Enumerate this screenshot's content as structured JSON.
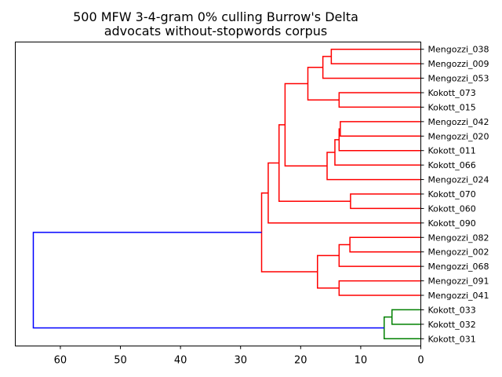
{
  "chart_data": {
    "type": "dendrogram",
    "orientation": "left",
    "title": [
      "500 MFW 3-4-gram 0% culling Burrow's Delta",
      "advocats without-stopwords corpus"
    ],
    "xlabel": "",
    "ylabel": "",
    "xlim": [
      67.5,
      0
    ],
    "xticks": [
      60,
      50,
      40,
      30,
      20,
      10,
      0
    ],
    "leaves": [
      "Mengozzi_038",
      "Mengozzi_009",
      "Mengozzi_053",
      "Kokott_073",
      "Kokott_015",
      "Mengozzi_042",
      "Mengozzi_020",
      "Kokott_011",
      "Kokott_066",
      "Mengozzi_024",
      "Kokott_070",
      "Kokott_060",
      "Kokott_090",
      "Mengozzi_082",
      "Mengozzi_002",
      "Mengozzi_068",
      "Mengozzi_091",
      "Mengozzi_041",
      "Kokott_033",
      "Kokott_032",
      "Kokott_031"
    ],
    "colors": {
      "cluster_1": "#ff0000",
      "cluster_2": "#008000",
      "root": "#0000ff",
      "axis": "#000000"
    },
    "merges": [
      {
        "a": "L0",
        "b": "L1",
        "h": 14.9,
        "color": "cluster_1"
      },
      {
        "a": "M0",
        "b": "L2",
        "h": 16.3,
        "color": "cluster_1"
      },
      {
        "a": "L3",
        "b": "L4",
        "h": 13.6,
        "color": "cluster_1"
      },
      {
        "a": "M1",
        "b": "M2",
        "h": 18.8,
        "color": "cluster_1"
      },
      {
        "a": "L5",
        "b": "L6",
        "h": 13.4,
        "color": "cluster_1"
      },
      {
        "a": "M4",
        "b": "L7",
        "h": 13.6,
        "color": "cluster_1"
      },
      {
        "a": "M5",
        "b": "L8",
        "h": 14.3,
        "color": "cluster_1"
      },
      {
        "a": "M6",
        "b": "L9",
        "h": 15.6,
        "color": "cluster_1"
      },
      {
        "a": "M3",
        "b": "M7",
        "h": 22.6,
        "color": "cluster_1"
      },
      {
        "a": "L10",
        "b": "L11",
        "h": 11.7,
        "color": "cluster_1"
      },
      {
        "a": "M8",
        "b": "M9",
        "h": 23.6,
        "color": "cluster_1"
      },
      {
        "a": "M10",
        "b": "L12",
        "h": 25.4,
        "color": "cluster_1"
      },
      {
        "a": "L13",
        "b": "L14",
        "h": 11.8,
        "color": "cluster_1"
      },
      {
        "a": "M12",
        "b": "L15",
        "h": 13.6,
        "color": "cluster_1"
      },
      {
        "a": "L16",
        "b": "L17",
        "h": 13.6,
        "color": "cluster_1"
      },
      {
        "a": "M13",
        "b": "M14",
        "h": 17.2,
        "color": "cluster_1"
      },
      {
        "a": "M11",
        "b": "M15",
        "h": 26.5,
        "color": "cluster_1"
      },
      {
        "a": "L18",
        "b": "L19",
        "h": 4.8,
        "color": "cluster_2"
      },
      {
        "a": "M17",
        "b": "L20",
        "h": 6.1,
        "color": "cluster_2"
      },
      {
        "a": "M16",
        "b": "M18",
        "h": 64.5,
        "color": "root"
      }
    ]
  }
}
